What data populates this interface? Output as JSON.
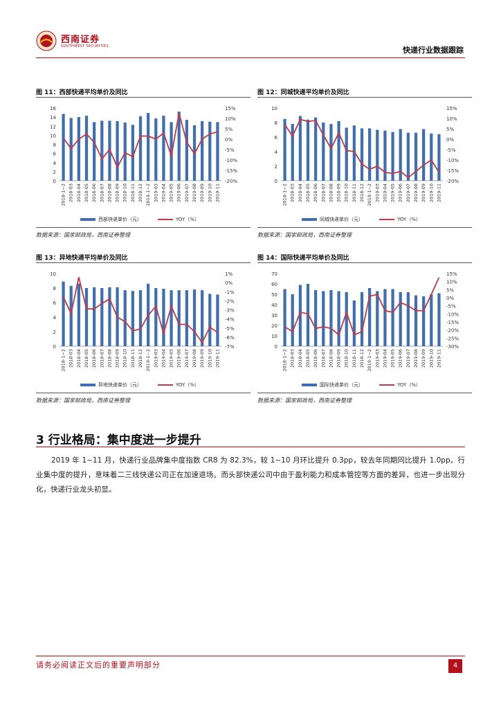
{
  "header": {
    "logo_text": "西南证券",
    "logo_sub": "SOUTHWEST SECURITIES",
    "report_name": "快递行业数据跟踪"
  },
  "figures": [
    {
      "title": "图 11：西部快递平均单价及同比",
      "source": "数据来源：国家邮政局，西南证券整理"
    },
    {
      "title": "图 12：同城快递平均单价及同比",
      "source": "数据来源：国家邮政局，西南证券整理"
    },
    {
      "title": "图 13：异地快递平均单价及同比",
      "source": "数据来源：国家邮政局，西南证券整理"
    },
    {
      "title": "图 14：国际快递平均单价及同比",
      "source": "数据来源：国家邮政局，西南证券整理"
    }
  ],
  "section": {
    "title": "3 行业格局：集中度进一步提升",
    "paragraph": "2019 年 1~11 月，快递行业品牌集中度指数 CR8 为 82.3%，较 1~10 月环比提升 0.3pp，较去年同期同比提升 1.0pp。行业集中度的提升，意味着二三线快递公司正在加速退场。而头部快递公司中由于盈利能力和成本管控等方面的差异，也进一步出现分化，快递行业龙头初显。"
  },
  "footer": {
    "disclaimer": "请务必阅读正文后的重要声明部分",
    "page": "4"
  },
  "colors": {
    "bar": "#3f6fb0",
    "line": "#c0394a",
    "accent": "#b4101c"
  },
  "chart_data": [
    {
      "type": "bar+line",
      "categories": [
        "2018-1~2",
        "2018-03",
        "2018-04",
        "2018-05",
        "2018-06",
        "2018-07",
        "2018-08",
        "2018-09",
        "2018-10",
        "2018-11",
        "2018-12",
        "2019-1~2",
        "2019-03",
        "2019-04",
        "2019-05",
        "2019-06",
        "2019-07",
        "2019-08",
        "2019-09",
        "2019-10",
        "2019-11"
      ],
      "series": [
        {
          "name": "西部快递单价（元）",
          "axis": "left",
          "type": "bar",
          "values": [
            14.7,
            13.8,
            14.0,
            14.3,
            12.9,
            13.2,
            13.2,
            13.1,
            12.8,
            12.3,
            14.2,
            14.9,
            13.7,
            14.3,
            12.9,
            15.2,
            13.4,
            12.2,
            13.1,
            13.0,
            12.9
          ]
        },
        {
          "name": "YOY（%）",
          "axis": "right",
          "type": "line",
          "values": [
            0.5,
            -4.5,
            0.0,
            2.5,
            -1.5,
            -9.5,
            -5.0,
            -13.5,
            -6.5,
            -8.5,
            1.5,
            1.5,
            0.0,
            3.0,
            -8.0,
            12.5,
            -1.5,
            -7.0,
            0.0,
            2.5,
            3.5
          ]
        }
      ],
      "ylim_left": [
        0,
        16
      ],
      "yticks_left": [
        "0",
        "2",
        "4",
        "6",
        "8",
        "10",
        "12",
        "14",
        "16"
      ],
      "ylim_right": [
        -20,
        15
      ],
      "yticks_right": [
        "-20%",
        "-15%",
        "-10%",
        "-5%",
        "0%",
        "5%",
        "10%",
        "15%"
      ]
    },
    {
      "type": "bar+line",
      "categories": [
        "2018-1~2",
        "2018-03",
        "2018-04",
        "2018-05",
        "2018-06",
        "2018-07",
        "2018-08",
        "2018-09",
        "2018-10",
        "2018-11",
        "2018-12",
        "2019-1~2",
        "2019-03",
        "2019-04",
        "2019-05",
        "2019-06",
        "2019-07",
        "2019-08",
        "2019-09",
        "2019-10",
        "2019-11"
      ],
      "series": [
        {
          "name": "同城快递单价（元）",
          "axis": "left",
          "type": "bar",
          "values": [
            8.5,
            7.8,
            8.9,
            8.4,
            8.7,
            8.0,
            7.8,
            8.2,
            7.3,
            7.6,
            7.2,
            7.2,
            7.0,
            6.9,
            6.7,
            7.1,
            6.6,
            6.6,
            7.1,
            6.5,
            6.4
          ]
        },
        {
          "name": "YOY（%）",
          "axis": "right",
          "type": "line",
          "values": [
            7.0,
            1.5,
            9.5,
            8.5,
            9.0,
            2.0,
            -4.5,
            3.0,
            -5.5,
            -6.0,
            -12.0,
            -14.5,
            -13.0,
            -16.0,
            -16.5,
            -15.5,
            -18.5,
            -15.5,
            -12.5,
            -10.0,
            -16.0
          ]
        }
      ],
      "ylim_left": [
        0,
        10
      ],
      "yticks_left": [
        "0",
        "2",
        "4",
        "6",
        "8",
        "10"
      ],
      "ylim_right": [
        -20,
        15
      ],
      "yticks_right": [
        "-20%",
        "-15%",
        "-10%",
        "-5%",
        "0%",
        "5%",
        "10%",
        "15%"
      ]
    },
    {
      "type": "bar+line",
      "categories": [
        "2018-1~2",
        "2018-03",
        "2018-04",
        "2018-05",
        "2018-06",
        "2018-07",
        "2018-08",
        "2018-09",
        "2018-10",
        "2018-11",
        "2018-12",
        "2019-1~2",
        "2019-03",
        "2019-04",
        "2019-05",
        "2019-06",
        "2019-07",
        "2019-08",
        "2019-09",
        "2019-10",
        "2019-11"
      ],
      "series": [
        {
          "name": "异地快递单价（元）",
          "axis": "left",
          "type": "bar",
          "values": [
            8.9,
            8.3,
            8.6,
            8.0,
            8.1,
            8.0,
            8.1,
            8.1,
            7.7,
            7.6,
            7.7,
            8.6,
            8.0,
            7.9,
            7.7,
            7.7,
            7.7,
            7.8,
            7.7,
            7.2,
            7.1
          ]
        },
        {
          "name": "YOY（%）",
          "axis": "right",
          "type": "line",
          "values": [
            -1.6,
            -3.4,
            0.6,
            -2.9,
            -2.9,
            -2.3,
            -1.8,
            -3.8,
            -4.3,
            -5.3,
            -5.1,
            -3.6,
            -2.6,
            -5.6,
            -2.6,
            -4.6,
            -4.6,
            -5.4,
            -6.6,
            -4.9,
            -5.5
          ]
        }
      ],
      "ylim_left": [
        0,
        10
      ],
      "yticks_left": [
        "0",
        "2",
        "4",
        "6",
        "8",
        "10"
      ],
      "ylim_right": [
        -7,
        1
      ],
      "yticks_right": [
        "-7%",
        "-6%",
        "-5%",
        "-4%",
        "-3%",
        "-2%",
        "-1%",
        "0%",
        "1%"
      ]
    },
    {
      "type": "bar+line",
      "categories": [
        "2018-1~2",
        "2018-03",
        "2018-04",
        "2018-05",
        "2018-06",
        "2018-07",
        "2018-08",
        "2018-09",
        "2018-10",
        "2018-11",
        "2018-12",
        "2019-1~2",
        "2019-03",
        "2019-04",
        "2019-05",
        "2019-06",
        "2019-07",
        "2019-08",
        "2019-09",
        "2019-10",
        "2019-11"
      ],
      "series": [
        {
          "name": "国际快递单价（元）",
          "axis": "left",
          "type": "bar",
          "values": [
            55,
            50,
            59,
            60,
            54,
            53,
            54,
            53,
            52,
            44,
            52,
            56,
            53,
            55,
            55,
            52,
            52,
            49,
            48,
            50,
            51
          ]
        },
        {
          "name": "YOY（%）",
          "axis": "right",
          "type": "line",
          "values": [
            -18,
            -21,
            -9,
            -10,
            -19,
            -18,
            -19,
            -23,
            -9,
            -23,
            -21,
            1,
            2,
            -8,
            -9,
            -3,
            -5,
            -8,
            -8,
            2,
            12.5
          ]
        }
      ],
      "ylim_left": [
        0,
        70
      ],
      "yticks_left": [
        "0",
        "10",
        "20",
        "30",
        "40",
        "50",
        "60",
        "70"
      ],
      "ylim_right": [
        -30,
        15
      ],
      "yticks_right": [
        "-30%",
        "-25%",
        "-20%",
        "-15%",
        "-10%",
        "-5%",
        "0%",
        "5%",
        "10%",
        "15%"
      ]
    }
  ]
}
